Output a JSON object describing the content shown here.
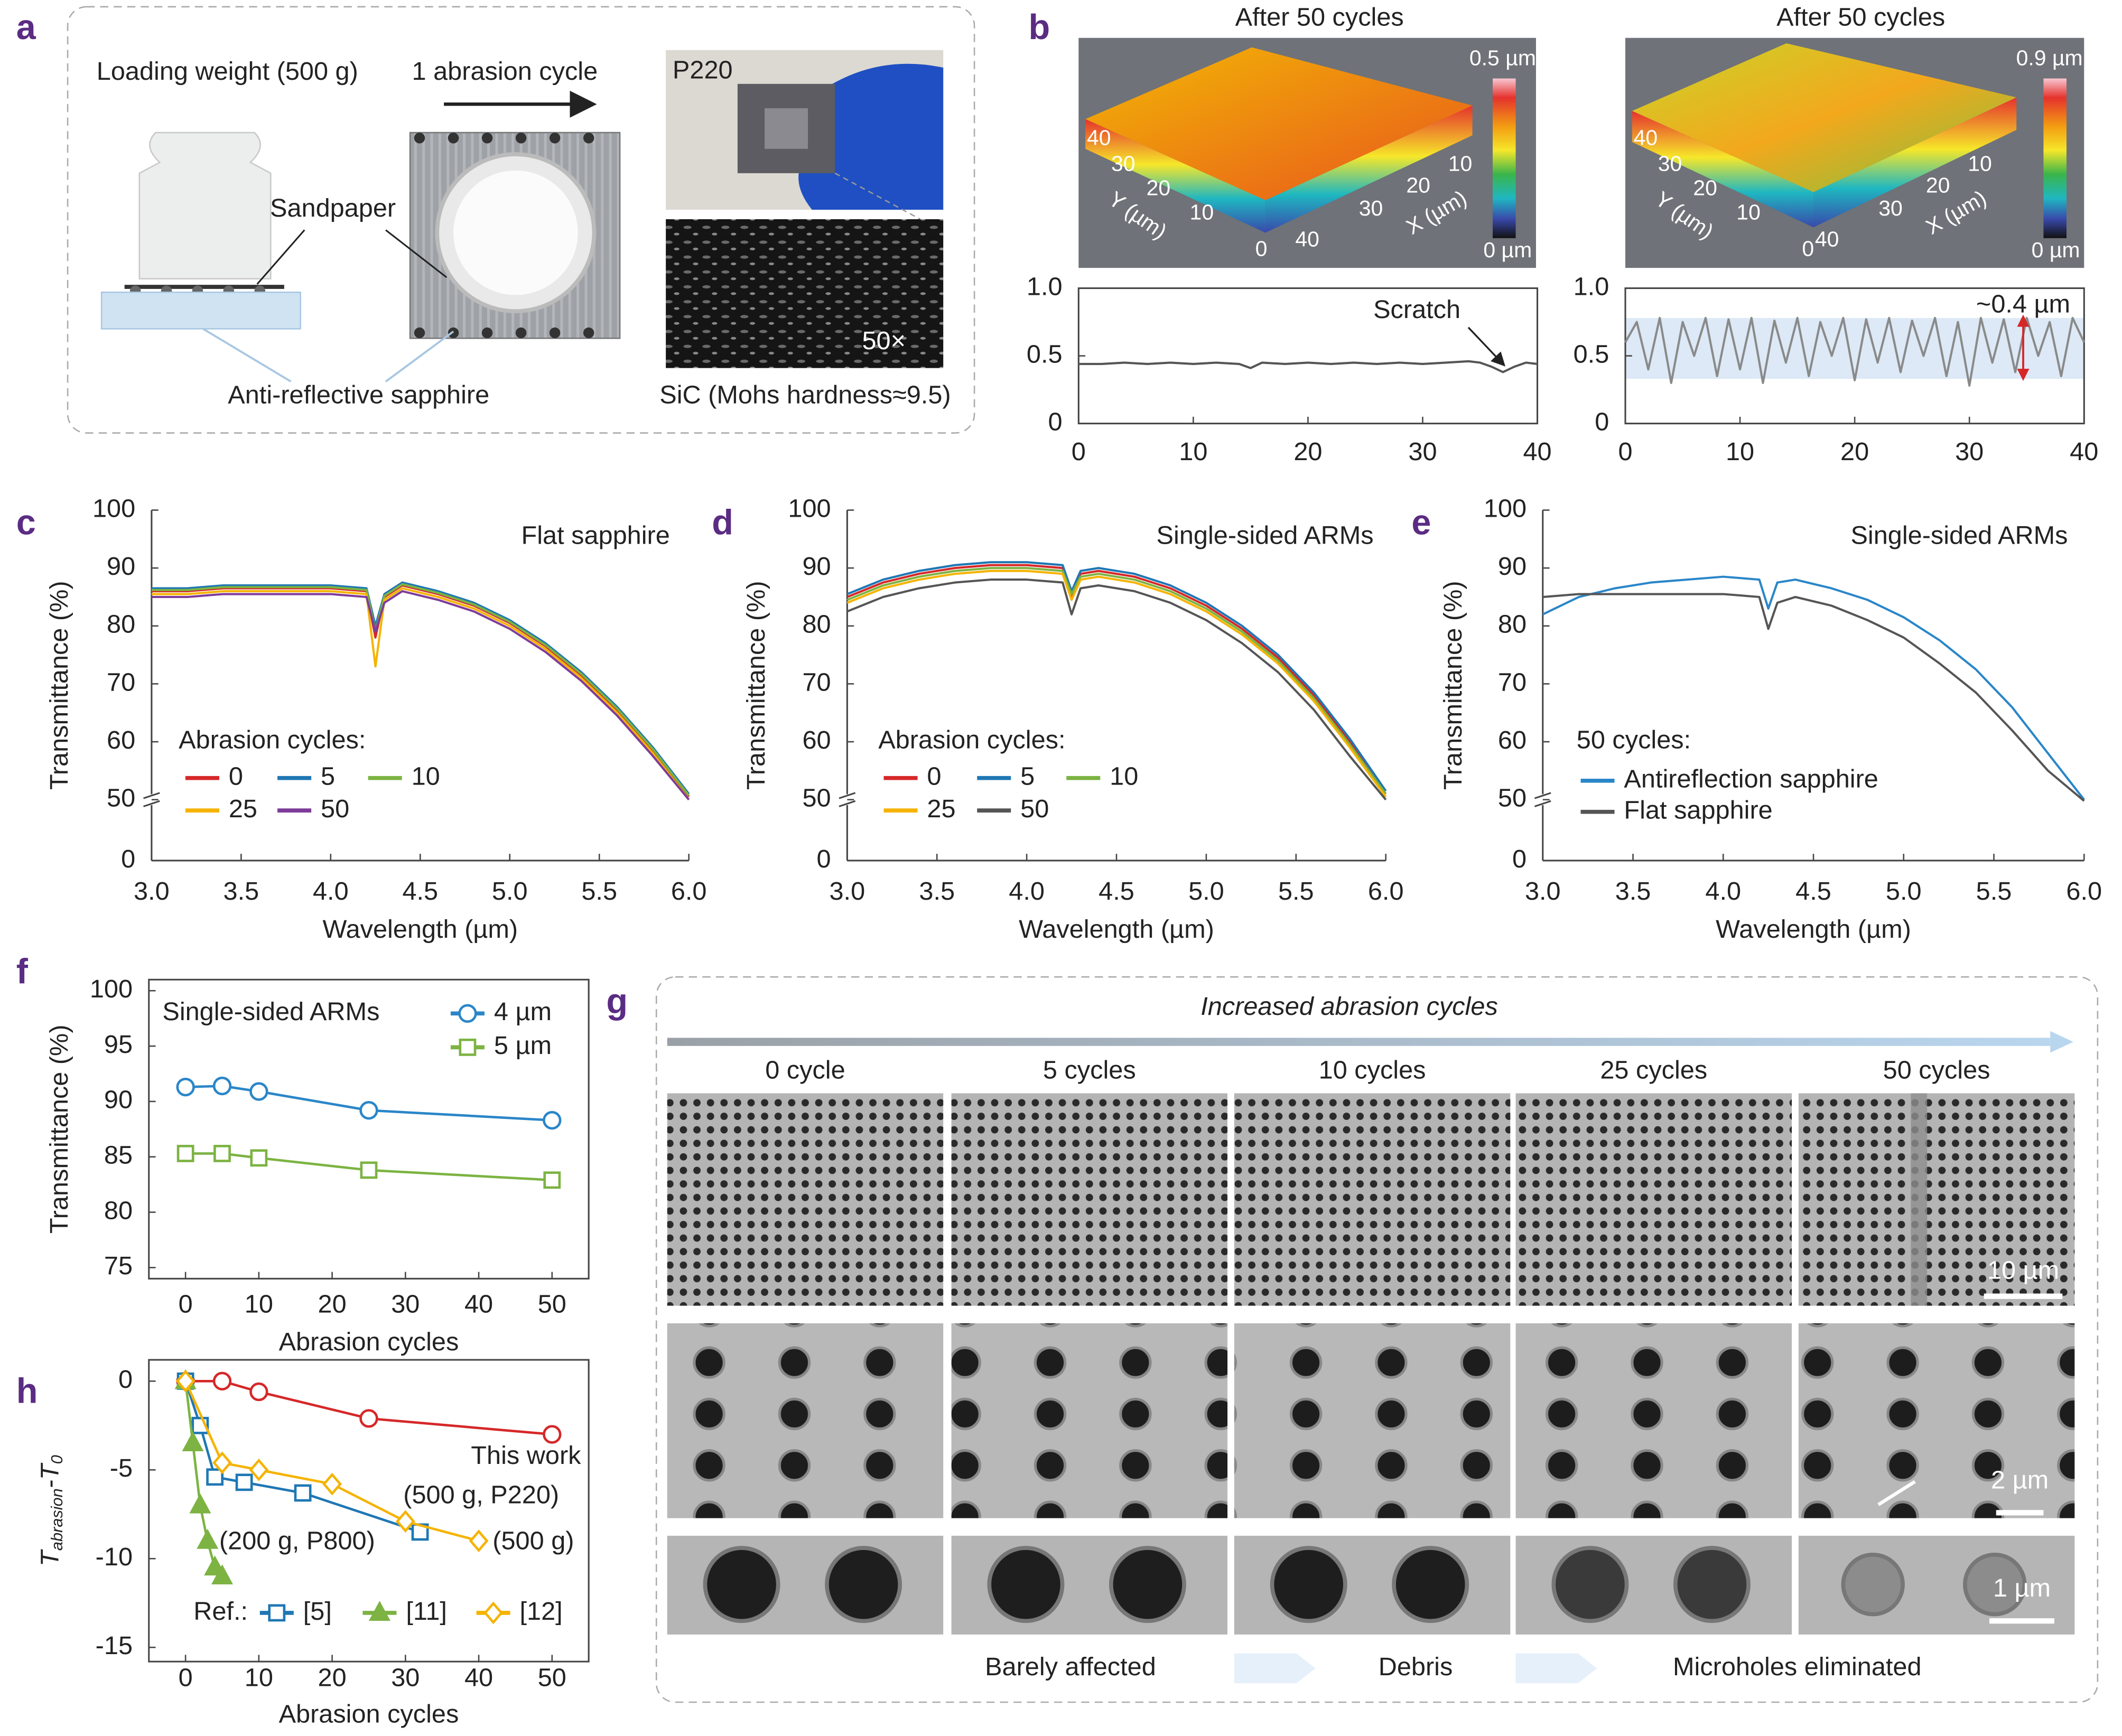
{
  "panel_labels": [
    "a",
    "b",
    "c",
    "d",
    "e",
    "f",
    "g",
    "h"
  ],
  "panel_a": {
    "loading_weight": "Loading weight (500 g)",
    "abrasion_cycle": "1 abrasion cycle",
    "sandpaper": "Sandpaper",
    "sapphire": "Anti-reflective sapphire",
    "grit": "P220",
    "magnification": "50×",
    "sic": "SiC (Mohs hardness≈9.5)"
  },
  "panel_b": {
    "titles": [
      "After 50 cycles",
      "After 50 cycles"
    ],
    "colorbar_max": [
      "0.5 µm",
      "0.9 µm"
    ],
    "colorbar_min": [
      "0 µm",
      "0 µm"
    ],
    "y_axis_label": "Y (µm)",
    "x_axis_label": "X (µm)",
    "y_ticks": [
      "40",
      "30",
      "20",
      "10",
      "0"
    ],
    "x_ticks": [
      "10",
      "20",
      "30",
      "40"
    ]
  },
  "panel_g": {
    "header": "Increased abrasion cycles",
    "columns": [
      "0 cycle",
      "5 cycles",
      "10 cycles",
      "25 cycles",
      "50 cycles"
    ],
    "scale_bars": [
      "10 µm",
      "2 µm",
      "1 µm"
    ],
    "stages": [
      "Barely affected",
      "Debris",
      "Microholes eliminated"
    ]
  },
  "chart_data": [
    {
      "type": "line",
      "x": [
        0,
        2,
        4,
        6,
        8,
        10,
        12,
        14,
        15,
        16,
        18,
        20,
        22,
        24,
        26,
        28,
        30,
        32,
        34,
        35,
        36,
        37,
        38,
        39,
        40
      ],
      "values": [
        0.44,
        0.44,
        0.45,
        0.44,
        0.45,
        0.44,
        0.45,
        0.44,
        0.41,
        0.45,
        0.44,
        0.45,
        0.44,
        0.45,
        0.44,
        0.45,
        0.44,
        0.45,
        0.46,
        0.45,
        0.42,
        0.38,
        0.42,
        0.45,
        0.44
      ],
      "color": "#555555",
      "xlim": [
        0,
        40
      ],
      "xticks": [
        0,
        10,
        20,
        30,
        40
      ],
      "ylim": [
        0,
        1
      ],
      "yticks": [
        0,
        0.5,
        {
          "value": 1,
          "label": "1.0"
        }
      ],
      "annotations": [
        "Scratch"
      ]
    },
    {
      "type": "line",
      "x": [
        0,
        1,
        2,
        3,
        4,
        5,
        6,
        7,
        8,
        9,
        10,
        11,
        12,
        13,
        14,
        15,
        16,
        17,
        18,
        19,
        20,
        21,
        22,
        23,
        24,
        25,
        26,
        27,
        28,
        29,
        30,
        31,
        32,
        33,
        34,
        35,
        36,
        37,
        38,
        39,
        40
      ],
      "values": [
        0.6,
        0.75,
        0.4,
        0.78,
        0.3,
        0.75,
        0.5,
        0.78,
        0.35,
        0.77,
        0.4,
        0.78,
        0.3,
        0.76,
        0.45,
        0.78,
        0.35,
        0.75,
        0.5,
        0.78,
        0.32,
        0.77,
        0.45,
        0.78,
        0.38,
        0.76,
        0.5,
        0.78,
        0.35,
        0.75,
        0.28,
        0.78,
        0.45,
        0.77,
        0.38,
        0.78,
        0.5,
        0.75,
        0.35,
        0.78,
        0.6
      ],
      "color": "#8a8a8a",
      "xlim": [
        0,
        40
      ],
      "xticks": [
        0,
        10,
        20,
        30,
        40
      ],
      "ylim": [
        0,
        1
      ],
      "yticks": [
        0,
        0.5,
        {
          "value": 1,
          "label": "1.0"
        }
      ],
      "annotations": [
        "~0.4 µm"
      ]
    },
    {
      "type": "line",
      "title": "Flat sapphire",
      "x_label": "Wavelength (µm)",
      "y_label": "Transmittance (%)",
      "legend_title": "Abrasion cycles:",
      "x": [
        3.0,
        3.2,
        3.4,
        3.6,
        3.8,
        4.0,
        4.2,
        4.25,
        4.3,
        4.4,
        4.6,
        4.8,
        5.0,
        5.2,
        5.4,
        5.6,
        5.8,
        6.0
      ],
      "series": [
        {
          "name": "0",
          "color": "#d62728",
          "values": [
            86,
            86,
            86.5,
            86.5,
            86.5,
            86.5,
            86,
            78,
            85,
            87,
            85.5,
            83.5,
            80.5,
            76.5,
            71.5,
            65.5,
            58.5,
            50.5
          ]
        },
        {
          "name": "5",
          "color": "#1f77b4",
          "values": [
            86.5,
            86.5,
            87,
            87,
            87,
            87,
            86.5,
            80,
            85.5,
            87.5,
            86,
            84,
            81,
            77,
            72,
            66,
            59,
            51
          ]
        },
        {
          "name": "10",
          "color": "#7cb342",
          "values": [
            86.2,
            86.2,
            86.7,
            86.7,
            86.7,
            86.7,
            86.2,
            79,
            85.2,
            87.2,
            85.7,
            83.7,
            80.7,
            76.7,
            71.7,
            65.7,
            58.7,
            50.7
          ]
        },
        {
          "name": "25",
          "color": "#f5b300",
          "values": [
            85.5,
            85.5,
            86,
            86,
            86,
            86,
            85.5,
            73,
            84.5,
            86.5,
            85,
            83,
            80,
            76,
            71,
            65,
            58,
            50
          ]
        },
        {
          "name": "50",
          "color": "#7e3c99",
          "values": [
            85,
            85,
            85.5,
            85.5,
            85.5,
            85.5,
            85,
            79,
            84,
            86,
            84.5,
            82.5,
            79.5,
            75.5,
            70.5,
            64.5,
            57.5,
            50
          ]
        }
      ],
      "xlim": [
        3.0,
        6.0
      ],
      "xticks": [
        {
          "value": 3,
          "label": "3.0"
        },
        3.5,
        {
          "value": 4,
          "label": "4.0"
        },
        4.5,
        {
          "value": 5,
          "label": "5.0"
        },
        5.5,
        {
          "value": 6,
          "label": "6.0"
        }
      ],
      "ylim": [
        0,
        100
      ],
      "yticks": [
        0,
        50,
        60,
        70,
        80,
        90,
        100
      ],
      "axis_break": [
        0,
        50
      ]
    },
    {
      "type": "line",
      "title": "Single-sided ARMs",
      "x_label": "Wavelength (µm)",
      "y_label": "Transmittance (%)",
      "legend_title": "Abrasion cycles:",
      "x": [
        3.0,
        3.2,
        3.4,
        3.6,
        3.8,
        4.0,
        4.2,
        4.25,
        4.3,
        4.4,
        4.6,
        4.8,
        5.0,
        5.2,
        5.4,
        5.6,
        5.8,
        6.0
      ],
      "series": [
        {
          "name": "0",
          "color": "#d62728",
          "values": [
            85,
            87.5,
            89,
            90,
            90.5,
            90.5,
            90,
            85,
            89,
            89.5,
            88.5,
            86.5,
            83.5,
            79.5,
            74.5,
            68,
            60,
            51
          ]
        },
        {
          "name": "5",
          "color": "#1f77b4",
          "values": [
            85.5,
            88,
            89.5,
            90.5,
            91,
            91,
            90.5,
            86,
            89.5,
            90,
            89,
            87,
            84,
            80,
            75,
            68.5,
            60.5,
            51.5
          ]
        },
        {
          "name": "10",
          "color": "#7cb342",
          "values": [
            84.5,
            87,
            88.5,
            89.5,
            90,
            90,
            89.5,
            85.5,
            88.5,
            89,
            88,
            86,
            83,
            79,
            74,
            67.5,
            59.5,
            51
          ]
        },
        {
          "name": "25",
          "color": "#f5b300",
          "values": [
            84,
            86.5,
            88,
            89,
            89.5,
            89.5,
            89,
            84.5,
            88,
            88.5,
            87.5,
            85.5,
            82.5,
            78.5,
            73.5,
            67,
            59,
            50.5
          ]
        },
        {
          "name": "50",
          "color": "#555555",
          "values": [
            82.5,
            85,
            86.5,
            87.5,
            88,
            88,
            87.5,
            82,
            86.5,
            87,
            86,
            84,
            81,
            77,
            72,
            65.5,
            57.5,
            50
          ]
        }
      ],
      "xlim": [
        3.0,
        6.0
      ],
      "xticks": [
        {
          "value": 3,
          "label": "3.0"
        },
        3.5,
        {
          "value": 4,
          "label": "4.0"
        },
        4.5,
        {
          "value": 5,
          "label": "5.0"
        },
        5.5,
        {
          "value": 6,
          "label": "6.0"
        }
      ],
      "ylim": [
        0,
        100
      ],
      "yticks": [
        0,
        50,
        60,
        70,
        80,
        90,
        100
      ],
      "axis_break": [
        0,
        50
      ]
    },
    {
      "type": "line",
      "title": "Single-sided ARMs",
      "x_label": "Wavelength (µm)",
      "y_label": "Transmittance (%)",
      "legend_title": "50 cycles:",
      "x": [
        3.0,
        3.2,
        3.4,
        3.6,
        3.8,
        4.0,
        4.2,
        4.25,
        4.3,
        4.4,
        4.6,
        4.8,
        5.0,
        5.2,
        5.4,
        5.6,
        5.8,
        6.0
      ],
      "series": [
        {
          "name": "Antireflection sapphire",
          "color": "#2a86c8",
          "values": [
            82,
            85,
            86.5,
            87.5,
            88,
            88.5,
            88,
            83,
            87.5,
            88,
            86.5,
            84.5,
            81.5,
            77.5,
            72.5,
            66,
            58,
            50
          ]
        },
        {
          "name": "Flat sapphire",
          "color": "#555555",
          "values": [
            85,
            85.5,
            85.5,
            85.5,
            85.5,
            85.5,
            85,
            79.5,
            84,
            85,
            83.5,
            81,
            78,
            73.5,
            68.5,
            62,
            55,
            49
          ]
        }
      ],
      "xlim": [
        3.0,
        6.0
      ],
      "xticks": [
        {
          "value": 3,
          "label": "3.0"
        },
        3.5,
        {
          "value": 4,
          "label": "4.0"
        },
        4.5,
        {
          "value": 5,
          "label": "5.0"
        },
        5.5,
        {
          "value": 6,
          "label": "6.0"
        }
      ],
      "ylim": [
        0,
        100
      ],
      "yticks": [
        0,
        50,
        60,
        70,
        80,
        90,
        100
      ],
      "axis_break": [
        0,
        50
      ]
    },
    {
      "type": "line",
      "x_label": "Abrasion cycles",
      "y_label": "Transmittance (%)",
      "annotations": [
        "Single-sided ARMs"
      ],
      "x": [
        0,
        5,
        10,
        25,
        50
      ],
      "series": [
        {
          "name": "4 µm",
          "color": "#2a86c8",
          "marker": "circle",
          "values": [
            91.3,
            91.4,
            90.9,
            89.2,
            88.3
          ]
        },
        {
          "name": "5 µm",
          "color": "#7cb342",
          "marker": "square",
          "values": [
            85.3,
            85.3,
            84.9,
            83.8,
            82.9
          ]
        }
      ],
      "xlim": [
        -5,
        55
      ],
      "xticks": [
        0,
        10,
        20,
        30,
        40,
        50
      ],
      "ylim": [
        74,
        101
      ],
      "yticks": [
        75,
        80,
        85,
        90,
        95,
        100
      ]
    },
    {
      "type": "line",
      "x_label": "Abrasion cycles",
      "y_label": [
        "T",
        "abrasion",
        "-T",
        "0"
      ],
      "legend_title": "Ref.:",
      "annotations": [
        "This work",
        "(500 g, P220)",
        "(200 g, P800)",
        "(500 g)"
      ],
      "series": [
        {
          "color": "#d62728",
          "marker": "circle",
          "x": [
            0,
            5,
            10,
            25,
            50
          ],
          "values": [
            0,
            0,
            -0.6,
            -2.1,
            -3.0
          ]
        },
        {
          "name": "[5]",
          "color": "#1f77b4",
          "marker": "square",
          "x": [
            0,
            2,
            4,
            8,
            16,
            32
          ],
          "values": [
            0,
            -2.5,
            -5.4,
            -5.7,
            -6.3,
            -8.5
          ]
        },
        {
          "name": "[11]",
          "color": "#7cb342",
          "marker": "triangle",
          "x": [
            0,
            1,
            2,
            3,
            4,
            5
          ],
          "values": [
            0,
            -3.5,
            -7,
            -9,
            -10.5,
            -11
          ]
        },
        {
          "name": "[12]",
          "color": "#f5b300",
          "marker": "diamond",
          "x": [
            0,
            5,
            10,
            20,
            30,
            40
          ],
          "values": [
            0,
            -4.6,
            -5,
            -5.8,
            -7.9,
            -9
          ]
        }
      ],
      "xlim": [
        -5,
        55
      ],
      "xticks": [
        0,
        10,
        20,
        30,
        40,
        50
      ],
      "ylim": [
        -15.8,
        1.2
      ],
      "yticks": [
        -15,
        -10,
        -5,
        0
      ]
    }
  ]
}
